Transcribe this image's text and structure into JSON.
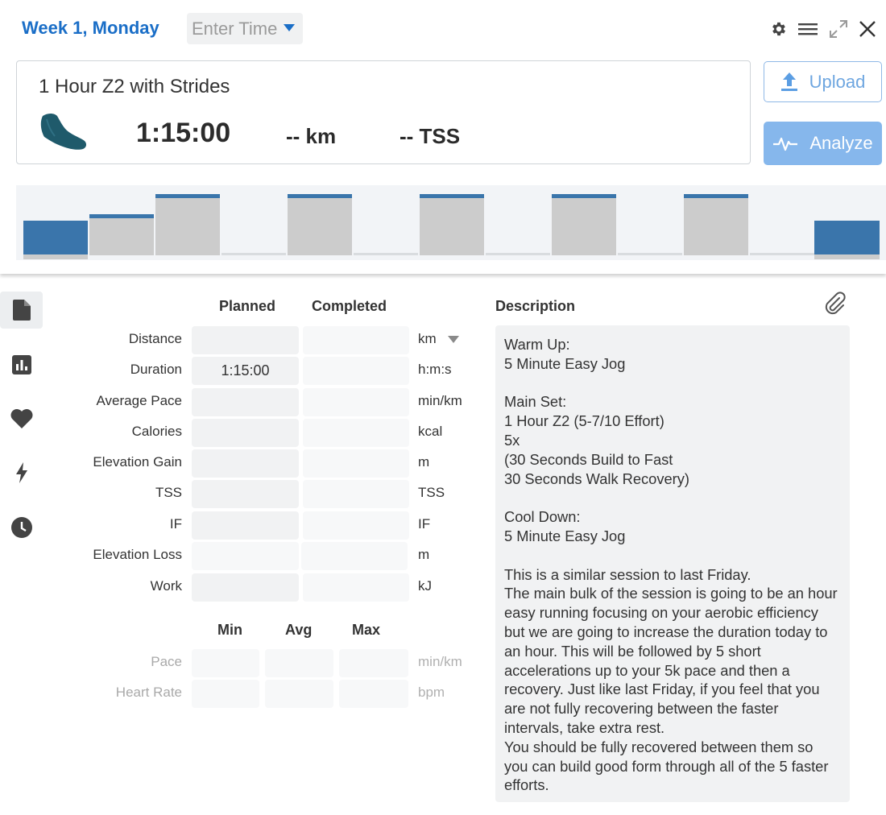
{
  "header": {
    "week_title": "Week 1, Monday",
    "time_placeholder": "Enter Time",
    "icons": [
      "gear-icon",
      "menu-icon",
      "expand-icon",
      "close-icon"
    ]
  },
  "summary": {
    "title": "1 Hour Z2 with Strides",
    "sport_icon": "running-shoe-icon",
    "duration": "1:15:00",
    "distance": "-- km",
    "tss": "-- TSS"
  },
  "buttons": {
    "upload": "Upload",
    "analyze": "Analyze"
  },
  "colors": {
    "accent": "#1a6ec7",
    "button_blue": "#86b7ec",
    "chart_blue": "#3a75ab",
    "chart_gray": "#cccccc"
  },
  "chart_data": {
    "type": "bar",
    "series": [
      {
        "values": [
          0.49,
          0.59,
          0.87,
          0.02,
          0.87,
          0.02,
          0.87,
          0.02,
          0.87,
          0.02,
          0.87,
          0.02,
          0.49
        ]
      }
    ]
  },
  "sidebar": {
    "items": [
      "document-icon",
      "bar-chart-icon",
      "heart-icon",
      "lightning-icon",
      "clock-icon"
    ]
  },
  "form": {
    "planned_header": "Planned",
    "completed_header": "Completed",
    "rows": [
      {
        "label": "Distance",
        "planned": "",
        "completed": "",
        "unit": "km"
      },
      {
        "label": "Duration",
        "planned": "1:15:00",
        "completed": "",
        "unit": "h:m:s"
      },
      {
        "label": "Average Pace",
        "planned": "",
        "completed": "",
        "unit": "min/km"
      },
      {
        "label": "Calories",
        "planned": "",
        "completed": "",
        "unit": "kcal"
      },
      {
        "label": "Elevation Gain",
        "planned": "",
        "completed": "",
        "unit": "m"
      },
      {
        "label": "TSS",
        "planned": "",
        "completed": "",
        "unit": "TSS"
      },
      {
        "label": "IF",
        "planned": "",
        "completed": "",
        "unit": "IF"
      },
      {
        "label": "Elevation Loss",
        "planned": "",
        "completed": "",
        "unit": "m"
      },
      {
        "label": "Work",
        "planned": "",
        "completed": "",
        "unit": "kJ"
      }
    ],
    "min_header": "Min",
    "avg_header": "Avg",
    "max_header": "Max",
    "metric_rows": [
      {
        "label": "Pace",
        "unit": "min/km"
      },
      {
        "label": "Heart Rate",
        "unit": "bpm"
      }
    ]
  },
  "description": {
    "header": "Description",
    "text": "Warm Up:\n5 Minute Easy Jog\n\nMain Set:\n1 Hour Z2 (5-7/10 Effort)\n5x\n(30 Seconds Build to Fast\n30 Seconds Walk Recovery)\n\nCool Down:\n5 Minute Easy Jog\n\nThis is a similar session to last Friday.\nThe main bulk of the session is going to be an hour easy running focusing on your aerobic efficiency but we are going to increase the duration today to an hour. This will be followed by 5 short accelerations up to your 5k pace and then a recovery. Just like last Friday, if you feel that you are not fully recovering between the faster intervals, take extra rest.\nYou should be fully recovered between them so you can build good form through all of the 5 faster efforts."
  }
}
